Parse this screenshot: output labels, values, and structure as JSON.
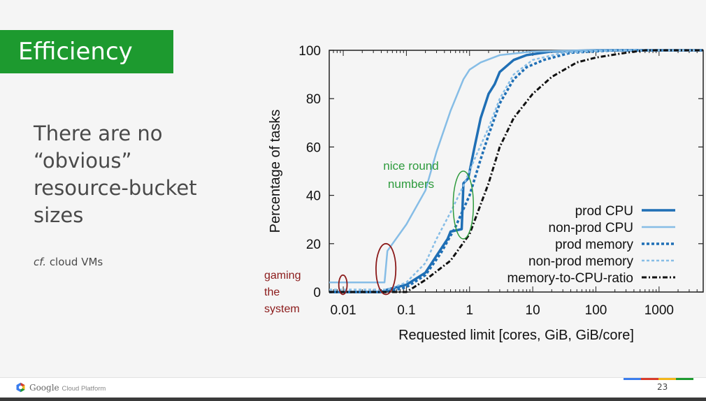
{
  "slide": {
    "title": "Efficiency",
    "body_lines": [
      "There are no",
      "“obvious”",
      "resource-bucket",
      "sizes"
    ],
    "note_prefix": "cf.",
    "note_text": " cloud VMs",
    "page_number": "23",
    "colors": {
      "title_bg": "#1d9a2f",
      "text": "#4a4a4a",
      "footer_bar": [
        "#3b7ded",
        "#d83b2a",
        "#f3b61a",
        "#1d9a2f"
      ]
    }
  },
  "footer": {
    "brand": "Google",
    "brand_suffix": "Cloud Platform",
    "logo_icon": "google-cloud-hexagon-icon"
  },
  "chart_data": {
    "type": "line",
    "title": "",
    "xlabel": "Requested limit [cores, GiB, GiB/core]",
    "ylabel": "Percentage of tasks",
    "x_scale": "log",
    "xlim": [
      0.006,
      5000
    ],
    "ylim": [
      0,
      100
    ],
    "x_ticks": [
      {
        "value": 0.01,
        "label": "0.01"
      },
      {
        "value": 0.1,
        "label": "0.1"
      },
      {
        "value": 1,
        "label": "1"
      },
      {
        "value": 10,
        "label": "10"
      },
      {
        "value": 100,
        "label": "100"
      },
      {
        "value": 1000,
        "label": "1000"
      }
    ],
    "y_ticks": [
      {
        "value": 0,
        "label": "0"
      },
      {
        "value": 20,
        "label": "20"
      },
      {
        "value": 40,
        "label": "40"
      },
      {
        "value": 60,
        "label": "60"
      },
      {
        "value": 80,
        "label": "80"
      },
      {
        "value": 100,
        "label": "100"
      }
    ],
    "grid": false,
    "legend_position": "bottom-right",
    "series": [
      {
        "name": "prod CPU",
        "color": "#1f6fb5",
        "style": "solid",
        "width": 3.5,
        "points": [
          [
            0.006,
            0
          ],
          [
            0.04,
            0
          ],
          [
            0.05,
            1
          ],
          [
            0.1,
            3
          ],
          [
            0.2,
            8
          ],
          [
            0.3,
            15
          ],
          [
            0.45,
            22
          ],
          [
            0.5,
            25
          ],
          [
            0.75,
            26
          ],
          [
            0.8,
            45
          ],
          [
            0.95,
            47
          ],
          [
            1.2,
            60
          ],
          [
            1.5,
            72
          ],
          [
            2,
            82
          ],
          [
            2.5,
            86
          ],
          [
            3,
            91
          ],
          [
            5,
            96
          ],
          [
            8,
            98
          ],
          [
            20,
            99.5
          ],
          [
            100,
            100
          ],
          [
            5000,
            100
          ]
        ]
      },
      {
        "name": "non-prod CPU",
        "color": "#86bde6",
        "style": "solid",
        "width": 2.5,
        "points": [
          [
            0.006,
            4
          ],
          [
            0.045,
            4
          ],
          [
            0.05,
            17
          ],
          [
            0.1,
            28
          ],
          [
            0.2,
            42
          ],
          [
            0.3,
            58
          ],
          [
            0.5,
            75
          ],
          [
            0.8,
            88
          ],
          [
            1,
            92
          ],
          [
            1.5,
            95
          ],
          [
            3,
            98
          ],
          [
            10,
            99.5
          ],
          [
            100,
            100
          ],
          [
            5000,
            100
          ]
        ]
      },
      {
        "name": "prod memory",
        "color": "#1f6fb5",
        "style": "dashed",
        "width": 3.5,
        "points": [
          [
            0.006,
            0
          ],
          [
            0.05,
            0
          ],
          [
            0.1,
            2
          ],
          [
            0.2,
            7
          ],
          [
            0.35,
            16
          ],
          [
            0.6,
            27
          ],
          [
            1,
            40
          ],
          [
            1.5,
            55
          ],
          [
            2,
            65
          ],
          [
            3,
            78
          ],
          [
            5,
            88
          ],
          [
            8,
            93
          ],
          [
            15,
            96
          ],
          [
            40,
            99
          ],
          [
            200,
            100
          ],
          [
            5000,
            100
          ]
        ]
      },
      {
        "name": "non-prod memory",
        "color": "#86bde6",
        "style": "dashed",
        "width": 2.5,
        "points": [
          [
            0.006,
            1
          ],
          [
            0.05,
            1
          ],
          [
            0.1,
            4
          ],
          [
            0.2,
            12
          ],
          [
            0.3,
            22
          ],
          [
            0.5,
            33
          ],
          [
            0.8,
            44
          ],
          [
            1.2,
            55
          ],
          [
            2,
            68
          ],
          [
            3,
            80
          ],
          [
            5,
            90
          ],
          [
            10,
            96
          ],
          [
            30,
            99
          ],
          [
            200,
            100
          ],
          [
            5000,
            100
          ]
        ]
      },
      {
        "name": "memory-to-CPU-ratio",
        "color": "#111111",
        "style": "dashdot",
        "width": 3,
        "points": [
          [
            0.006,
            0
          ],
          [
            0.1,
            0
          ],
          [
            0.2,
            5
          ],
          [
            0.5,
            13
          ],
          [
            1,
            24
          ],
          [
            2,
            45
          ],
          [
            3,
            60
          ],
          [
            5,
            72
          ],
          [
            10,
            82
          ],
          [
            20,
            89
          ],
          [
            50,
            95
          ],
          [
            100,
            97
          ],
          [
            300,
            99
          ],
          [
            600,
            100
          ],
          [
            5000,
            100
          ]
        ]
      }
    ],
    "annotations": [
      {
        "text_lines": [
          "nice round",
          "numbers"
        ],
        "color": "#2e9b3d",
        "ellipse_center": [
          0.8,
          35
        ],
        "ellipse_x_span": [
          0.55,
          1.15
        ],
        "ellipse_y_span": [
          22,
          50
        ]
      },
      {
        "text_lines": [
          "gaming",
          "the",
          "system"
        ],
        "color": "#8b1a1a",
        "ellipses": [
          {
            "x_span": [
              0.0085,
              0.0115
            ],
            "y_span": [
              -1,
              7
            ]
          },
          {
            "x_span": [
              0.033,
              0.068
            ],
            "y_span": [
              -1,
              20
            ]
          }
        ]
      }
    ]
  }
}
